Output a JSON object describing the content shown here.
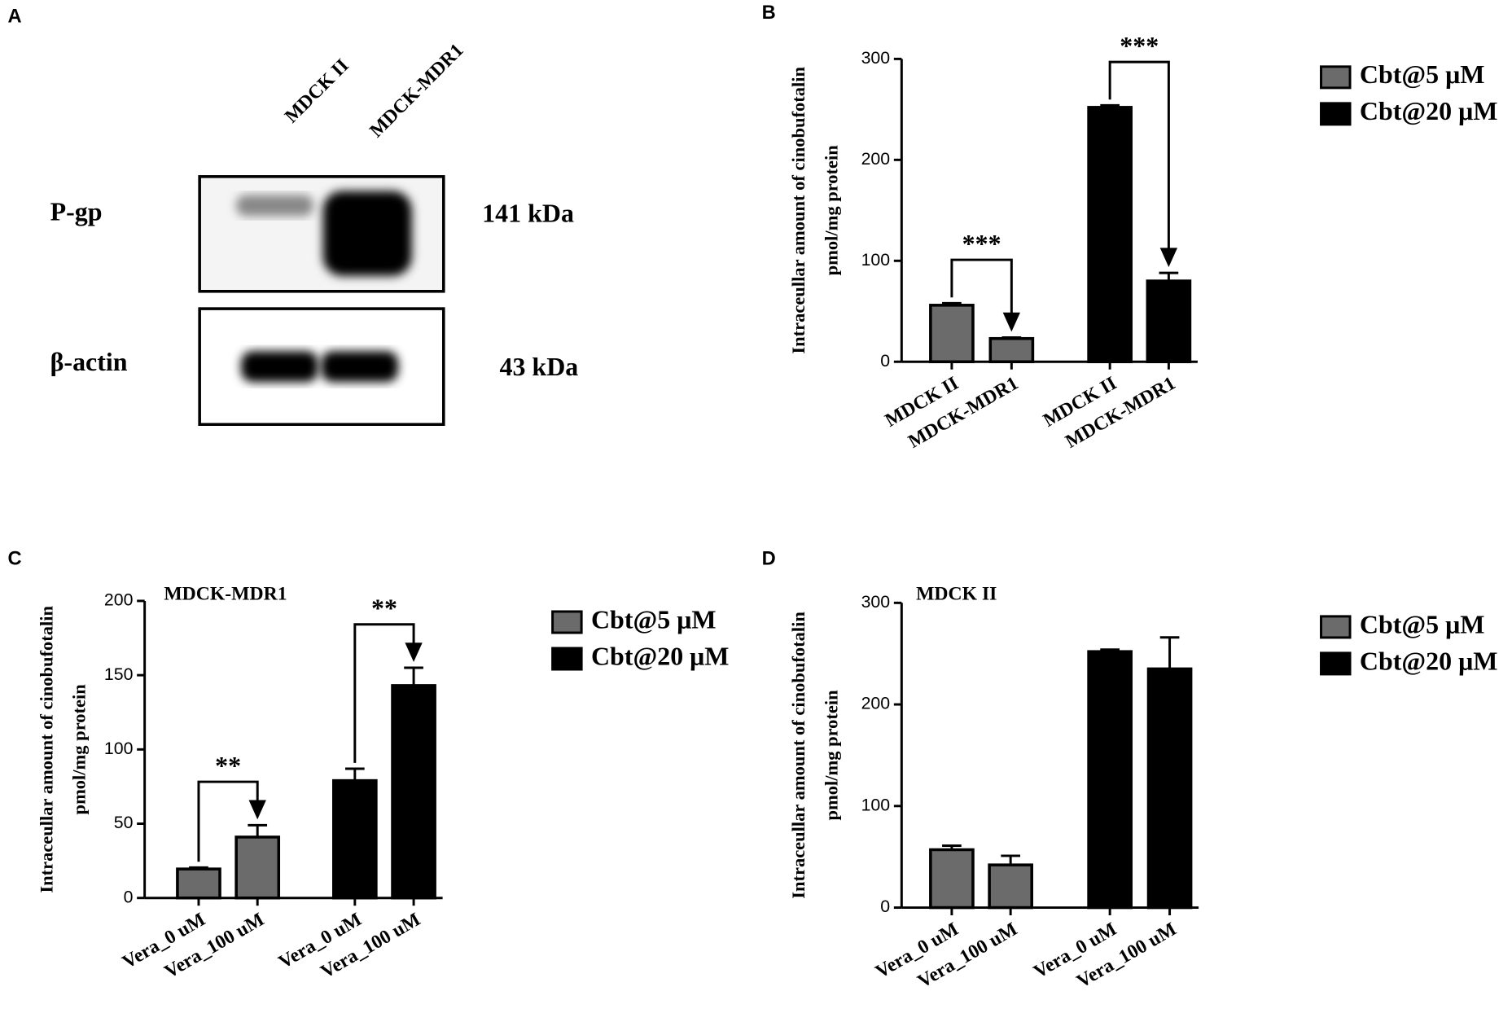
{
  "blot": {
    "panel": "A",
    "lanes": [
      "MDCK II",
      "MDCK-MDR1"
    ],
    "rows": [
      {
        "label": "P-gp",
        "size": "141 kDa"
      },
      {
        "label": "β-actin",
        "size": "43 kDa"
      }
    ]
  },
  "chart_data": [
    {
      "type": "bar",
      "panel": "B",
      "ylabel": [
        "Intraceullar amount of cinobufotalin",
        "pmol/mg protein"
      ],
      "categories": [
        "MDCK II",
        "MDCK-MDR1",
        "MDCK II",
        "MDCK-MDR1"
      ],
      "series": [
        {
          "name": "Cbt@5 μM",
          "color": "#6b6b6b",
          "values": [
            56,
            23,
            null,
            null
          ],
          "errors": [
            2,
            1,
            null,
            null
          ]
        },
        {
          "name": "Cbt@20 μM",
          "color": "#000000",
          "values": [
            null,
            null,
            252,
            80
          ],
          "errors": [
            null,
            null,
            2,
            8
          ]
        }
      ],
      "annotations": [
        "***",
        "***"
      ],
      "ylim": [
        0,
        300
      ],
      "yticks": [
        0,
        100,
        200,
        300
      ]
    },
    {
      "type": "bar",
      "panel": "C",
      "title": "MDCK-MDR1",
      "ylabel": [
        "Intraceullar amount of cinobufotalin",
        "pmol/mg protein"
      ],
      "categories": [
        "Vera_0 uM",
        "Vera_100 uM",
        "Vera_0 uM",
        "Vera_100 uM"
      ],
      "series": [
        {
          "name": "Cbt@5 μM",
          "color": "#6b6b6b",
          "values": [
            19.5,
            41,
            null,
            null
          ],
          "errors": [
            1,
            8,
            null,
            null
          ]
        },
        {
          "name": "Cbt@20 μM",
          "color": "#000000",
          "values": [
            null,
            null,
            79,
            143
          ],
          "errors": [
            null,
            null,
            8,
            12
          ]
        }
      ],
      "annotations": [
        "**",
        "**"
      ],
      "ylim": [
        0,
        200
      ],
      "yticks": [
        0,
        50,
        100,
        150,
        200
      ]
    },
    {
      "type": "bar",
      "panel": "D",
      "title": "MDCK II",
      "ylabel": [
        "Intraceullar amount of cinobufotalin",
        "pmol/mg protein"
      ],
      "categories": [
        "Vera_0 uM",
        "Vera_100 uM",
        "Vera_0 uM",
        "Vera_100 uM"
      ],
      "series": [
        {
          "name": "Cbt@5 μM",
          "color": "#6b6b6b",
          "values": [
            57,
            42,
            null,
            null
          ],
          "errors": [
            4,
            9,
            null,
            null
          ]
        },
        {
          "name": "Cbt@20 μM",
          "color": "#000000",
          "values": [
            null,
            null,
            252,
            235
          ],
          "errors": [
            null,
            null,
            2,
            31
          ]
        }
      ],
      "ylim": [
        0,
        300
      ],
      "yticks": [
        0,
        100,
        200,
        300
      ]
    }
  ]
}
